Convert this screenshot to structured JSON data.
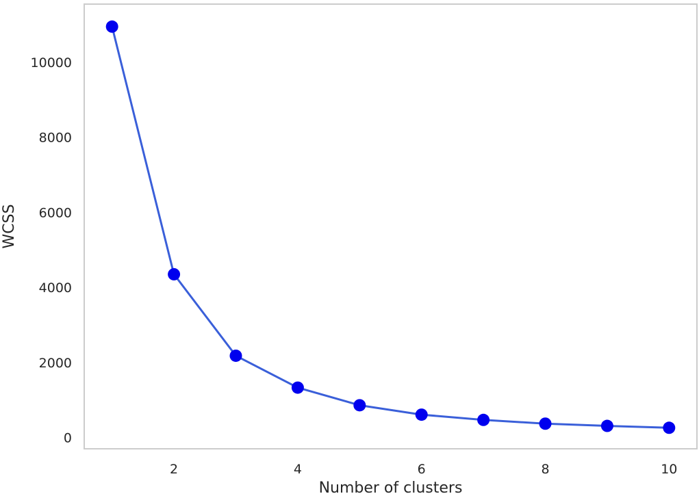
{
  "chart_data": {
    "type": "line",
    "title": "",
    "xlabel": "Number of clusters",
    "ylabel": "WCSS",
    "x": [
      1,
      2,
      3,
      4,
      5,
      6,
      7,
      8,
      9,
      10
    ],
    "series": [
      {
        "values": [
          10950,
          4350,
          2180,
          1330,
          860,
          610,
          470,
          370,
          310,
          260
        ]
      }
    ],
    "xlim": [
      0.55,
      10.45
    ],
    "ylim": [
      -300,
      11550
    ],
    "xticks": [
      2,
      4,
      6,
      8,
      10
    ],
    "yticks": [
      0,
      2000,
      4000,
      6000,
      8000,
      10000
    ],
    "grid": false,
    "legend": "none",
    "colors": {
      "line": "#3a5fd9",
      "marker": "#0000ee",
      "frame": "#cccccc",
      "text": "#262626"
    }
  }
}
